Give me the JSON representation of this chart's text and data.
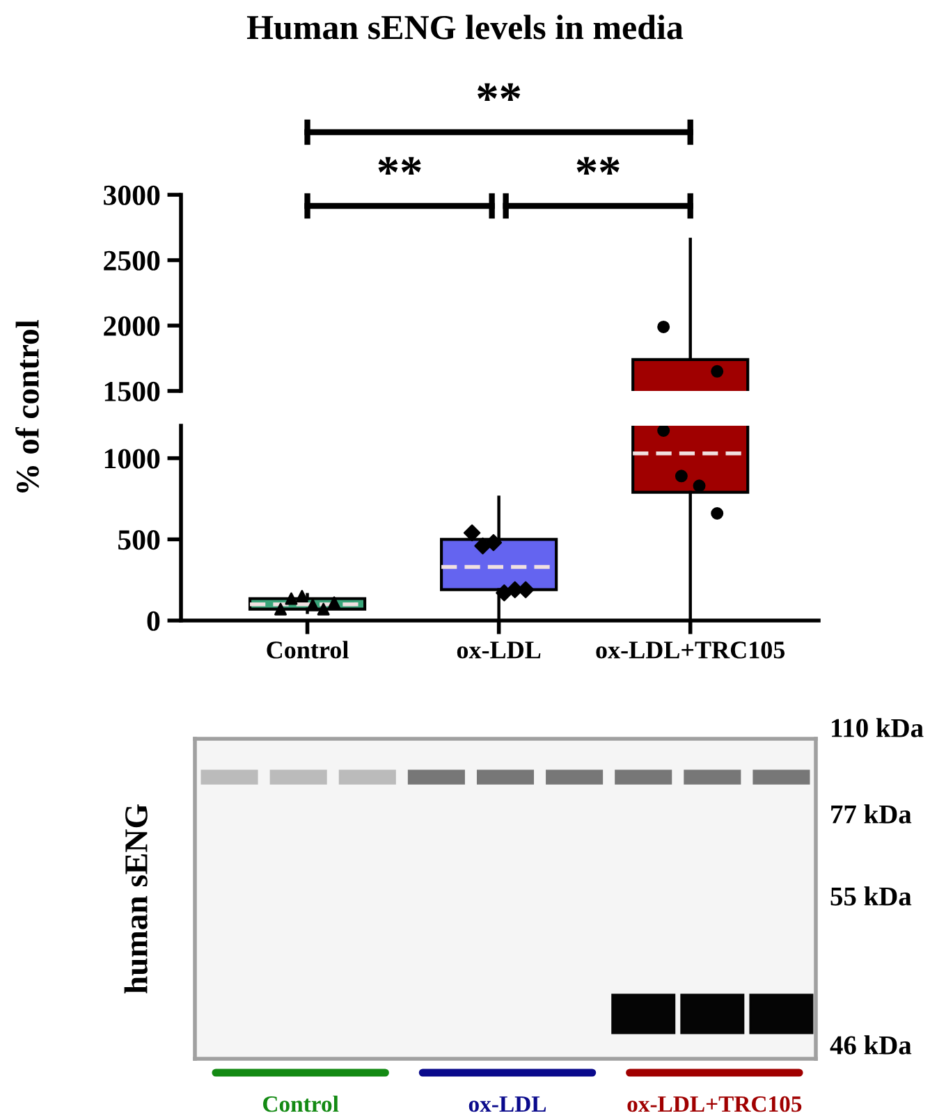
{
  "chart_data": [
    {
      "type": "box",
      "title": "Human sENG levels in media",
      "categories": [
        "Control",
        "ox-LDL",
        "ox-LDL+TRC105"
      ],
      "ylim": [
        1500,
        3000
      ],
      "yticks": [
        1500,
        2000,
        2500,
        3000
      ],
      "tick_labels": "y",
      "annotations": [
        "**",
        "**",
        "**"
      ],
      "colors": [
        "#3aa57a",
        "#6464f0",
        "#a00000"
      ],
      "series": [
        {
          "type": "scatter",
          "color": "#000000",
          "marker": "circle",
          "x": [
            "ox-LDL+TRC105",
            "ox-LDL+TRC105"
          ],
          "values": [
            1990,
            1650
          ]
        }
      ]
    },
    {
      "type": "box",
      "categories": [
        "Control",
        "ox-LDL",
        "ox-LDL+TRC105"
      ],
      "ylabel": "% of control",
      "ylim": [
        0,
        1200
      ],
      "yticks": [
        0,
        500,
        1000
      ],
      "colors": [
        "#3aa57a",
        "#6464f0",
        "#a00000"
      ],
      "boxes": [
        {
          "low": 50,
          "q1": 70,
          "median": 100,
          "q3": 135,
          "high": 160
        },
        {
          "low": 10,
          "q1": 190,
          "median": 330,
          "q3": 500,
          "high": 760
        },
        {
          "low": 0,
          "q1": 790,
          "median": 1030,
          "q3": 1740,
          "high": 2660
        }
      ],
      "series": [
        {
          "type": "scatter",
          "color": "#000000",
          "marker": "triangle",
          "x": [
            "Control",
            "Control",
            "Control",
            "Control",
            "Control",
            "Control"
          ],
          "values": [
            70,
            135,
            150,
            95,
            70,
            110
          ]
        },
        {
          "type": "scatter",
          "color": "#000000",
          "marker": "diamond",
          "x": [
            "ox-LDL",
            "ox-LDL",
            "ox-LDL",
            "ox-LDL",
            "ox-LDL",
            "ox-LDL"
          ],
          "values": [
            540,
            460,
            480,
            170,
            190,
            190
          ]
        },
        {
          "type": "scatter",
          "color": "#000000",
          "marker": "circle",
          "x": [
            "ox-LDL+TRC105",
            "ox-LDL+TRC105",
            "ox-LDL+TRC105",
            "ox-LDL+TRC105"
          ],
          "values": [
            1170,
            890,
            830,
            660
          ]
        }
      ]
    },
    {
      "type": "other",
      "ylabel": "human sENG",
      "categories": [
        "Control",
        "ox-LDL",
        "ox-LDL+TRC105"
      ],
      "colors": [
        "#138a13",
        "#0a0a8c",
        "#a00000"
      ],
      "annotations": [
        "110 kDa",
        "77 kDa",
        "55 kDa",
        "46 kDa"
      ]
    }
  ]
}
